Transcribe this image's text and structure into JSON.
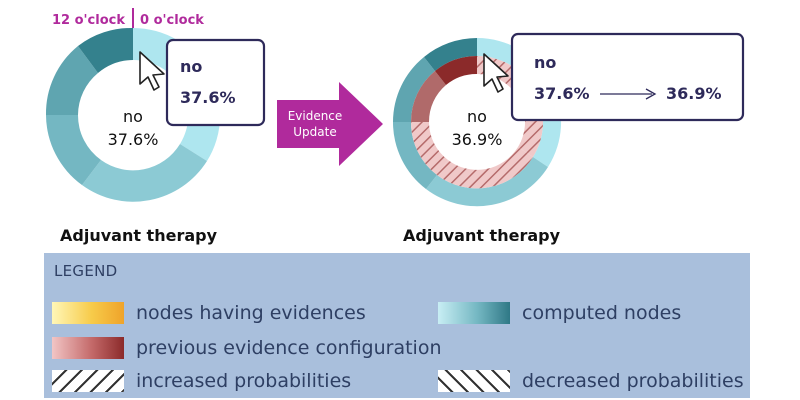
{
  "header": {
    "label_left": "12 o'clock",
    "label_right": "0 o'clock"
  },
  "left_chart": {
    "center_state": "no",
    "center_value": "37.6%",
    "tooltip_state": "no",
    "tooltip_value": "37.6%",
    "caption": "Adjuvant therapy"
  },
  "arrow": {
    "line1": "Evidence",
    "line2": "Update"
  },
  "right_chart": {
    "center_state": "no",
    "center_value": "36.9%",
    "tooltip_state": "no",
    "tooltip_from": "37.6%",
    "tooltip_to": "36.9%",
    "caption": "Adjuvant therapy"
  },
  "legend": {
    "title": "LEGEND",
    "items": [
      {
        "label": "nodes having evidences"
      },
      {
        "label": "computed nodes"
      },
      {
        "label": "previous evidence configuration"
      },
      {
        "label": "increased probabilities"
      },
      {
        "label": "decreased probabilities"
      }
    ]
  },
  "colors": {
    "accent_magenta": "#b02a9c",
    "tooltip_border": "#2e2a5a",
    "legend_bg": "#a9bfdc",
    "legend_text": "#2e3f63"
  }
}
